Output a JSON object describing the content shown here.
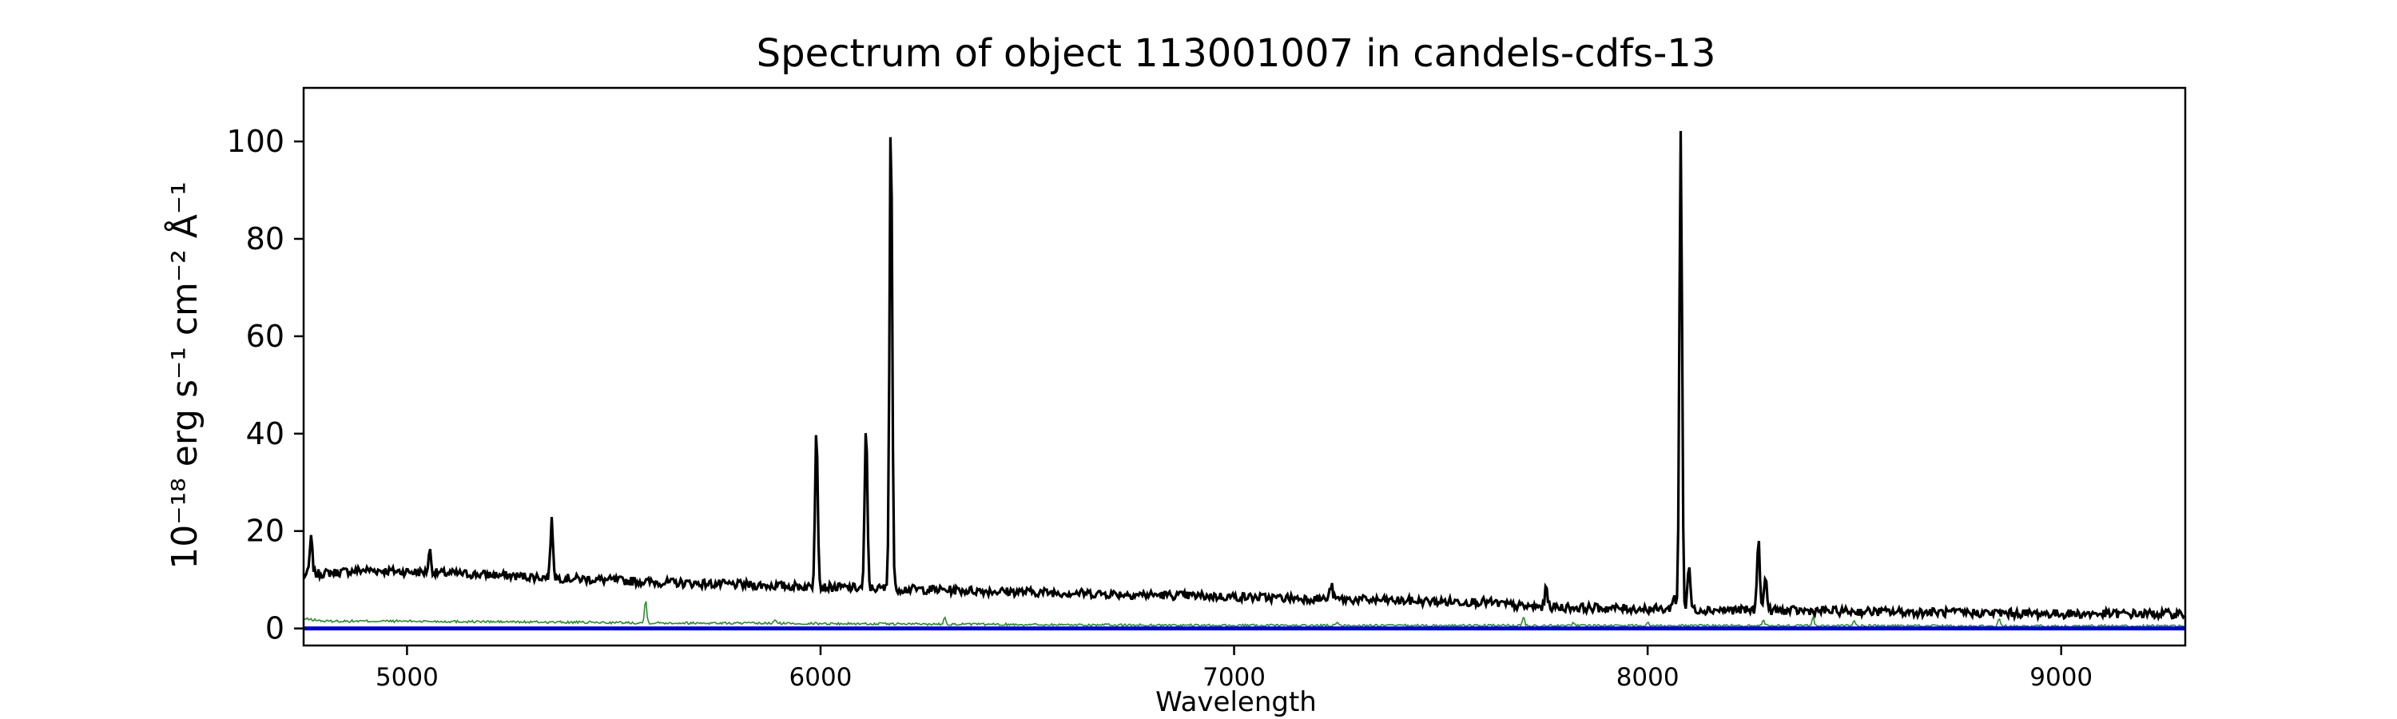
{
  "chart_data": {
    "type": "line",
    "title": "Spectrum of object 113001007 in candels-cdfs-13",
    "xlabel": "Wavelength",
    "ylabel": "10⁻¹⁸ erg s⁻¹ cm⁻² Å⁻¹",
    "xlim": [
      4750,
      9300
    ],
    "ylim": [
      -3.5,
      111
    ],
    "x_ticks": [
      5000,
      6000,
      7000,
      8000,
      9000
    ],
    "y_ticks": [
      0,
      20,
      40,
      60,
      80,
      100
    ],
    "grid": false,
    "colors": {
      "flux": "#000000",
      "error": "#2e8b2e",
      "baseline": "#0000cc"
    },
    "series": [
      {
        "role": "flux",
        "continuum": [
          [
            4750,
            11
          ],
          [
            4900,
            12
          ],
          [
            5200,
            11
          ],
          [
            5600,
            9.5
          ],
          [
            6000,
            8.5
          ],
          [
            6500,
            7.5
          ],
          [
            7000,
            6.5
          ],
          [
            7500,
            5.5
          ],
          [
            7600,
            5.5
          ],
          [
            7700,
            4.5
          ],
          [
            8000,
            4
          ],
          [
            8500,
            3.5
          ],
          [
            9000,
            3
          ],
          [
            9300,
            3
          ]
        ],
        "lines": [
          [
            4768,
            18.5
          ],
          [
            5055,
            16
          ],
          [
            5350,
            22
          ],
          [
            5990,
            42
          ],
          [
            6110,
            41.5
          ],
          [
            6170,
            106
          ],
          [
            7235,
            9
          ],
          [
            7755,
            8.5
          ],
          [
            8063,
            7
          ],
          [
            8080,
            102
          ],
          [
            8100,
            13
          ],
          [
            8268,
            19
          ],
          [
            8285,
            11
          ]
        ]
      },
      {
        "role": "error",
        "continuum": [
          [
            4750,
            2
          ],
          [
            4800,
            1.5
          ],
          [
            5000,
            1.5
          ],
          [
            5500,
            1.2
          ],
          [
            6000,
            1
          ],
          [
            7000,
            0.6
          ],
          [
            8000,
            0.6
          ],
          [
            9000,
            0.5
          ],
          [
            9300,
            0.5
          ]
        ],
        "lines": [
          [
            5577,
            6
          ],
          [
            5890,
            1.8
          ],
          [
            6300,
            2.5
          ],
          [
            7250,
            1.5
          ],
          [
            7700,
            2.5
          ],
          [
            7820,
            1.5
          ],
          [
            8000,
            1.5
          ],
          [
            8280,
            2
          ],
          [
            8400,
            2.5
          ],
          [
            8500,
            1.8
          ],
          [
            8850,
            2
          ]
        ]
      },
      {
        "role": "baseline",
        "constant": 0
      }
    ]
  }
}
